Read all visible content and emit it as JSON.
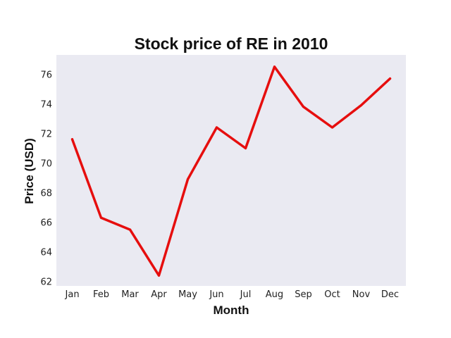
{
  "chart_data": {
    "type": "line",
    "title": "Stock price of RE in 2010",
    "xlabel": "Month",
    "ylabel": "Price (USD)",
    "categories": [
      "Jan",
      "Feb",
      "Mar",
      "Apr",
      "May",
      "Jun",
      "Jul",
      "Aug",
      "Sep",
      "Oct",
      "Nov",
      "Dec"
    ],
    "series": [
      {
        "color": "#e60e0e",
        "values": [
          71.6,
          66.3,
          65.5,
          62.4,
          68.9,
          72.4,
          71.0,
          76.5,
          73.8,
          72.4,
          73.9,
          75.7
        ]
      }
    ],
    "yticks": [
      62,
      64,
      66,
      68,
      70,
      72,
      74,
      76
    ],
    "ylim": [
      61.7,
      77.3
    ],
    "grid": false,
    "background_color": "#eaeaf2"
  }
}
